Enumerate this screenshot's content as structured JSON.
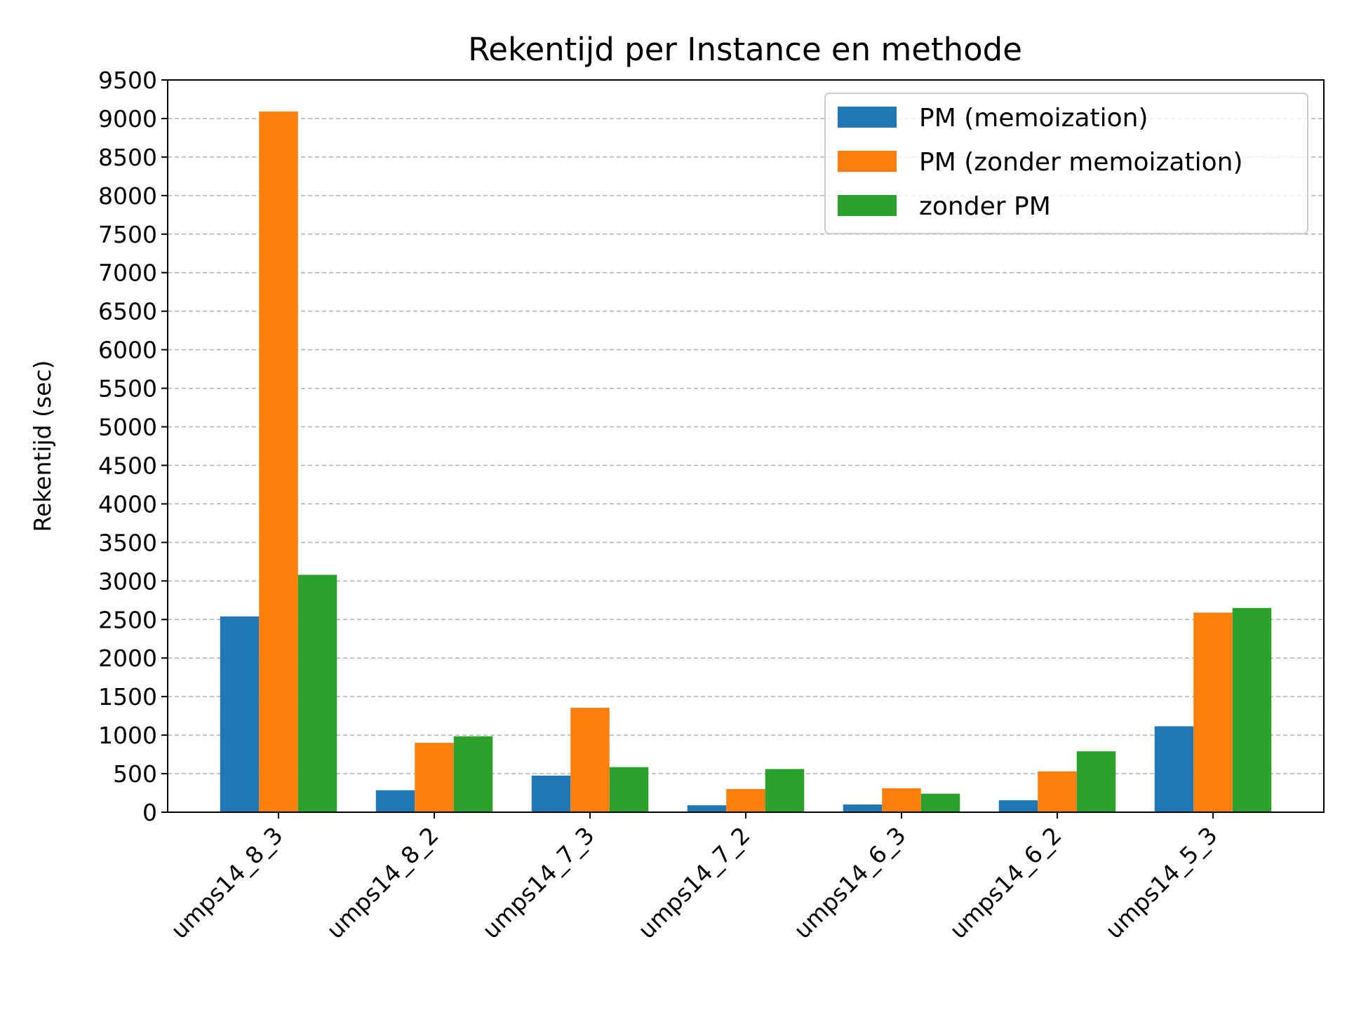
{
  "chart_data": {
    "type": "bar",
    "title": "Rekentijd per Instance en methode",
    "xlabel": "",
    "ylabel": "Rekentijd (sec)",
    "ylim": [
      0,
      9500
    ],
    "yticks": [
      0,
      500,
      1000,
      1500,
      2000,
      2500,
      3000,
      3500,
      4000,
      4500,
      5000,
      5500,
      6000,
      6500,
      7000,
      7500,
      8000,
      8500,
      9000,
      9500
    ],
    "grid": "y-dashed",
    "legend_position": "top-right",
    "categories": [
      "umps14_8_3",
      "umps14_8_2",
      "umps14_7_3",
      "umps14_7_2",
      "umps14_6_3",
      "umps14_6_2",
      "umps14_5_3"
    ],
    "series": [
      {
        "name": "PM (memoization)",
        "color": "#1f77b4",
        "values": [
          2540,
          285,
          475,
          90,
          100,
          155,
          1115
        ]
      },
      {
        "name": "PM (zonder memoization)",
        "color": "#ff7f0e",
        "values": [
          9090,
          900,
          1355,
          300,
          310,
          530,
          2590
        ]
      },
      {
        "name": "zonder PM",
        "color": "#2ca02c",
        "values": [
          3080,
          985,
          585,
          560,
          240,
          790,
          2650
        ]
      }
    ]
  }
}
